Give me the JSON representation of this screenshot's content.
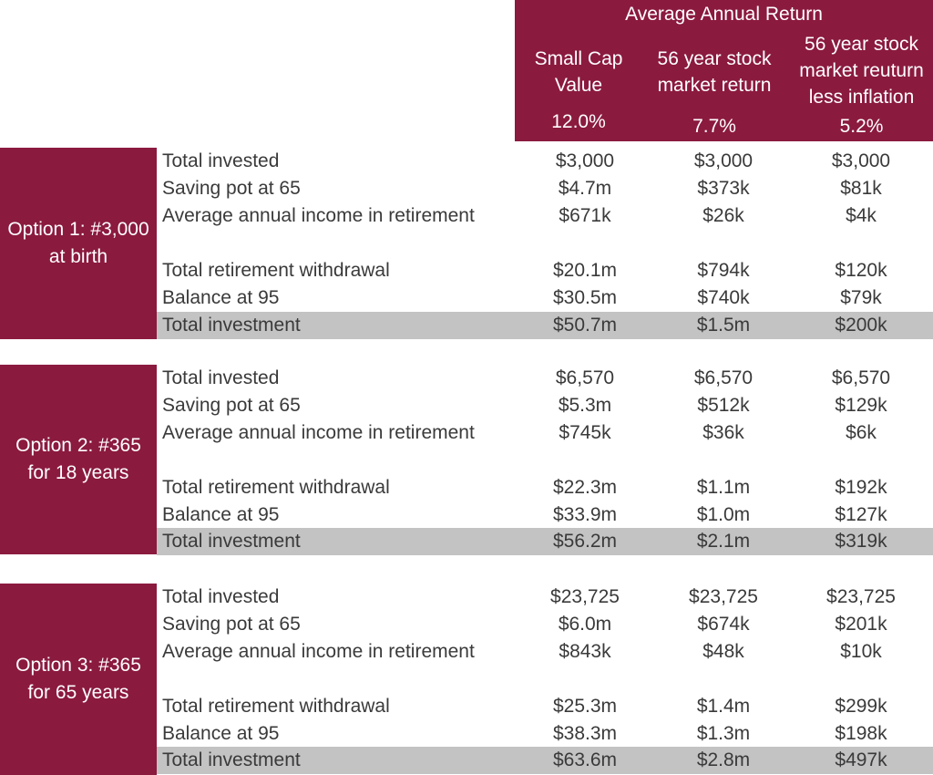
{
  "header": {
    "title": "Average Annual Return",
    "columns": [
      {
        "name": "Small Cap Value",
        "rate": "12.0%"
      },
      {
        "name": "56 year stock market return",
        "rate": "7.7%"
      },
      {
        "name": "56 year stock market reuturn less inflation",
        "rate": "5.2%"
      }
    ]
  },
  "options": [
    {
      "label": "Option 1: #3,000 at birth",
      "rows": [
        {
          "label": "Total invested",
          "values": [
            "$3,000",
            "$3,000",
            "$3,000"
          ]
        },
        {
          "label": "Saving pot at 65",
          "values": [
            "$4.7m",
            "$373k",
            "$81k"
          ]
        },
        {
          "label": "Average annual income in retirement",
          "values": [
            "$671k",
            "$26k",
            "$4k"
          ]
        },
        {
          "label": "Total retirement withdrawal",
          "values": [
            "$20.1m",
            "$794k",
            "$120k"
          ]
        },
        {
          "label": "Balance at 95",
          "values": [
            "$30.5m",
            "$740k",
            "$79k"
          ]
        },
        {
          "label": "Total investment",
          "values": [
            "$50.7m",
            "$1.5m",
            "$200k"
          ]
        }
      ]
    },
    {
      "label": "Option 2: #365 for 18 years",
      "rows": [
        {
          "label": "Total invested",
          "values": [
            "$6,570",
            "$6,570",
            "$6,570"
          ]
        },
        {
          "label": "Saving pot at 65",
          "values": [
            "$5.3m",
            "$512k",
            "$129k"
          ]
        },
        {
          "label": "Average annual income in retirement",
          "values": [
            "$745k",
            "$36k",
            "$6k"
          ]
        },
        {
          "label": "Total retirement withdrawal",
          "values": [
            "$22.3m",
            "$1.1m",
            "$192k"
          ]
        },
        {
          "label": "Balance at 95",
          "values": [
            "$33.9m",
            "$1.0m",
            "$127k"
          ]
        },
        {
          "label": "Total investment",
          "values": [
            "$56.2m",
            "$2.1m",
            "$319k"
          ]
        }
      ]
    },
    {
      "label": "Option 3: #365 for 65 years",
      "rows": [
        {
          "label": "Total invested",
          "values": [
            "$23,725",
            "$23,725",
            "$23,725"
          ]
        },
        {
          "label": "Saving pot at 65",
          "values": [
            "$6.0m",
            "$674k",
            "$201k"
          ]
        },
        {
          "label": "Average annual income in retirement",
          "values": [
            "$843k",
            "$48k",
            "$10k"
          ]
        },
        {
          "label": "Total retirement withdrawal",
          "values": [
            "$25.3m",
            "$1.4m",
            "$299k"
          ]
        },
        {
          "label": "Balance at 95",
          "values": [
            "$38.3m",
            "$1.3m",
            "$198k"
          ]
        },
        {
          "label": "Total investment",
          "values": [
            "$63.6m",
            "$2.8m",
            "$497k"
          ]
        }
      ]
    }
  ]
}
